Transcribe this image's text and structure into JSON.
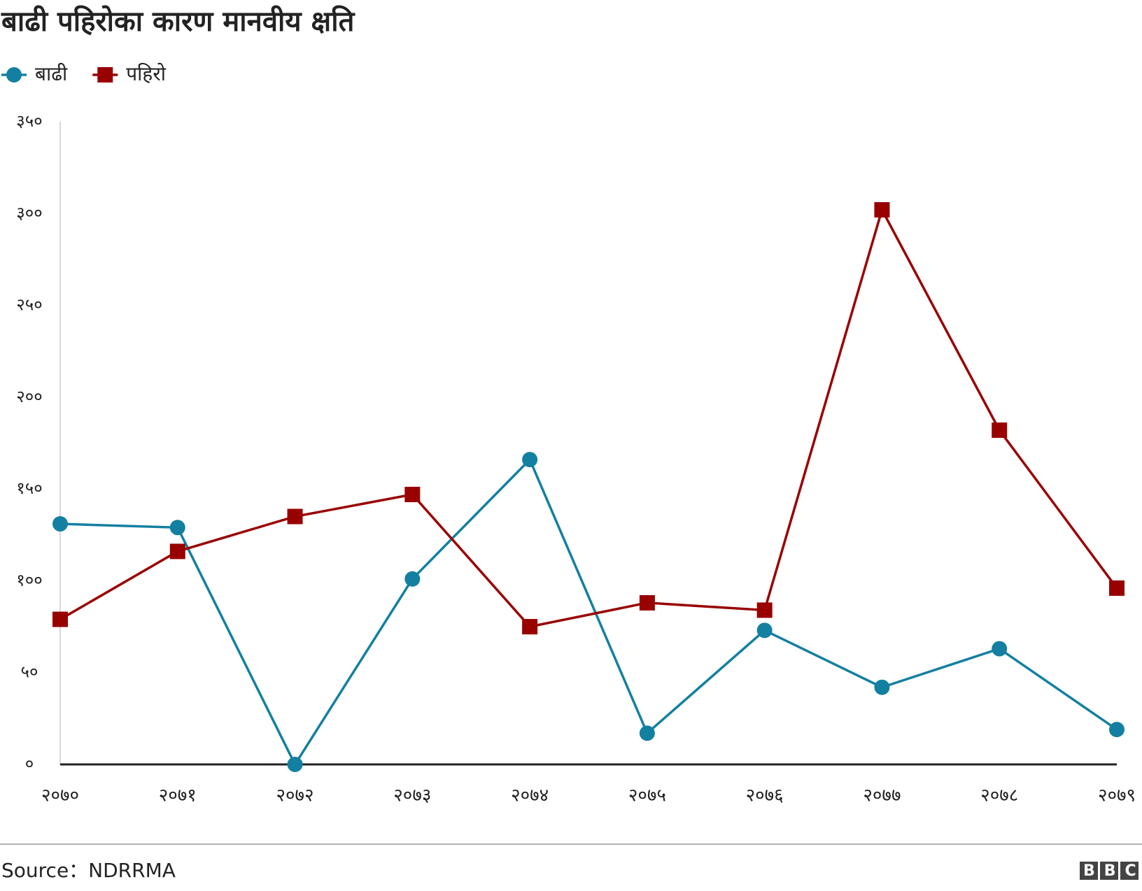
{
  "chart_data": {
    "type": "line",
    "title": "बाढी पहिरोका कारण मानवीय क्षति",
    "categories": [
      "२०७०",
      "२०७१",
      "२०७२",
      "२०७३",
      "२०७४",
      "२०७५",
      "२०७६",
      "२०७७",
      "२०७८",
      "२०७९"
    ],
    "series": [
      {
        "name": "बाढी",
        "color": "#1380a1",
        "marker": "circle",
        "values": [
          131,
          129,
          0,
          101,
          166,
          17,
          73,
          42,
          63,
          19
        ]
      },
      {
        "name": "पहिरो",
        "color": "#990000",
        "marker": "square",
        "values": [
          79,
          116,
          135,
          147,
          75,
          88,
          84,
          302,
          182,
          96
        ]
      }
    ],
    "ylim": [
      0,
      350
    ],
    "yticks": [
      {
        "value": 0,
        "label": "०"
      },
      {
        "value": 50,
        "label": "५०"
      },
      {
        "value": 100,
        "label": "१००"
      },
      {
        "value": 150,
        "label": "१५०"
      },
      {
        "value": 200,
        "label": "२००"
      },
      {
        "value": 250,
        "label": "२५०"
      },
      {
        "value": 300,
        "label": "३००"
      },
      {
        "value": 350,
        "label": "३५०"
      }
    ],
    "grid": false,
    "legend": "top-left",
    "source": "Source：NDRRMA",
    "logo": "BBC"
  }
}
